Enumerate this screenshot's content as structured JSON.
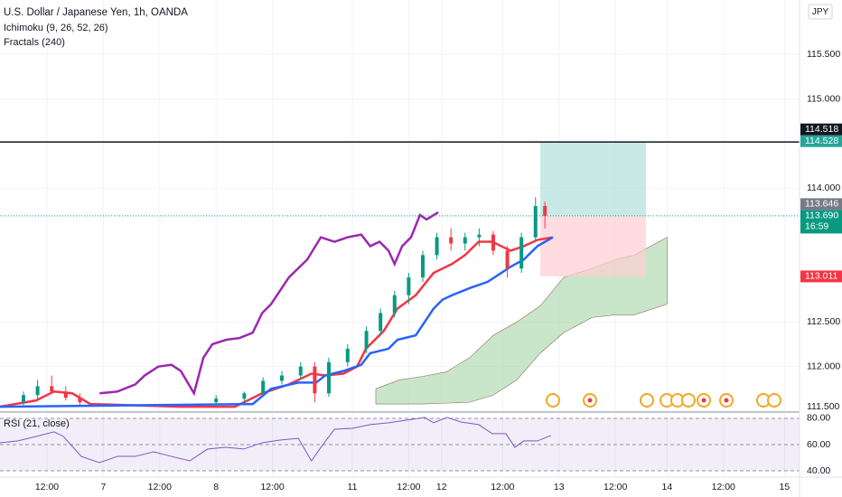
{
  "currency": "JPY",
  "chart_data": [
    {
      "type": "candlestick",
      "title": "U.S. Dollar / Japanese Yen, 1h, OANDA",
      "indicators": [
        "Ichimoku (9, 26, 52, 26)",
        "Fractals (240)"
      ],
      "xlim": [
        0,
        170.2
      ],
      "xticks": [
        {
          "value": 10,
          "label": "12:00"
        },
        {
          "value": 22,
          "label": "7"
        },
        {
          "value": 34,
          "label": "12:00"
        },
        {
          "value": 46,
          "label": "8"
        },
        {
          "value": 58,
          "label": "12:00"
        },
        {
          "value": 75,
          "label": "11"
        },
        {
          "value": 87,
          "label": "12:00"
        },
        {
          "value": 94,
          "label": "12"
        },
        {
          "value": 107,
          "label": "12:00"
        },
        {
          "value": 119,
          "label": "13"
        },
        {
          "value": 131,
          "label": "12:00"
        },
        {
          "value": 142,
          "label": "14"
        },
        {
          "value": 154,
          "label": "12:00"
        },
        {
          "value": 167,
          "label": "15"
        }
      ],
      "ylim": [
        111.5,
        116.05
      ],
      "yticks": [
        {
          "value": 111.5,
          "label": "111.500"
        },
        {
          "value": 112,
          "label": "112.000"
        },
        {
          "value": 112.5,
          "label": "112.500"
        },
        {
          "value": 114,
          "label": "114.000"
        },
        {
          "value": 115,
          "label": "115.000"
        },
        {
          "value": 115.5,
          "label": "115.500"
        }
      ],
      "grid": true,
      "candles": {
        "x": [
          5,
          8,
          11,
          14,
          17,
          46,
          52,
          56,
          60,
          64,
          67,
          70,
          74,
          78,
          81,
          84,
          87,
          90,
          93,
          96,
          99,
          102,
          105,
          108,
          111,
          114,
          116
        ],
        "open": [
          111.6,
          111.68,
          111.78,
          111.72,
          111.65,
          111.6,
          111.64,
          111.7,
          111.84,
          111.9,
          112.0,
          111.7,
          112.05,
          112.2,
          112.4,
          112.6,
          112.8,
          113.0,
          113.25,
          113.45,
          113.38,
          113.45,
          113.48,
          113.3,
          113.1,
          113.45,
          113.8
        ],
        "high": [
          111.72,
          111.85,
          111.9,
          111.78,
          111.7,
          111.68,
          111.72,
          111.88,
          111.95,
          112.05,
          112.05,
          112.1,
          112.25,
          112.45,
          112.65,
          112.85,
          113.05,
          113.3,
          113.5,
          113.55,
          113.5,
          113.55,
          113.52,
          113.35,
          113.5,
          113.9,
          113.85
        ],
        "low": [
          111.56,
          111.62,
          111.7,
          111.62,
          111.57,
          111.56,
          111.6,
          111.66,
          111.8,
          111.85,
          111.6,
          111.66,
          112.0,
          112.15,
          112.35,
          112.55,
          112.7,
          112.95,
          113.2,
          113.3,
          113.3,
          113.35,
          113.25,
          113.0,
          113.05,
          113.4,
          113.55
        ],
        "close": [
          111.68,
          111.78,
          111.72,
          111.65,
          111.6,
          111.64,
          111.7,
          111.84,
          111.9,
          112.0,
          111.7,
          112.05,
          112.2,
          112.4,
          112.6,
          112.8,
          113.0,
          113.25,
          113.45,
          113.38,
          113.45,
          113.48,
          113.3,
          113.1,
          113.45,
          113.8,
          113.69
        ],
        "up_color": "#089981",
        "down_color": "#f23645"
      },
      "cloud": {
        "color": "#a5d6a7",
        "x": [
          80,
          85,
          90,
          95,
          100,
          105,
          110,
          115,
          120,
          126,
          131,
          135,
          142
        ],
        "upper": [
          111.75,
          111.85,
          111.89,
          111.94,
          112.1,
          112.35,
          112.5,
          112.68,
          113.0,
          113.1,
          113.2,
          113.25,
          113.45
        ],
        "lower": [
          111.58,
          111.58,
          111.58,
          111.59,
          111.6,
          111.68,
          111.85,
          112.15,
          112.38,
          112.55,
          112.58,
          112.58,
          112.7
        ]
      },
      "series": [
        {
          "color": "#9c27b0",
          "x": [
            21.2,
            25.0,
            28.8,
            30.8,
            33.7,
            36.5,
            38.5,
            41.3,
            43.3,
            45.2,
            48.1,
            51.0,
            53.8,
            55.8,
            57.7,
            61.5,
            65.4,
            68.3,
            71.2,
            74.0,
            76.9,
            78.8,
            80.8,
            82.7,
            84.0,
            85.6,
            87.5,
            89.4,
            90.8,
            93.3
          ],
          "values": [
            111.7,
            111.72,
            111.8,
            111.9,
            112.0,
            112.02,
            111.95,
            111.7,
            112.1,
            112.25,
            112.3,
            112.32,
            112.38,
            112.6,
            112.7,
            113.0,
            113.2,
            113.45,
            113.4,
            113.45,
            113.48,
            113.35,
            113.4,
            113.3,
            113.15,
            113.35,
            113.45,
            113.7,
            113.65,
            113.73
          ]
        },
        {
          "color": "#f23645",
          "x": [
            0,
            7.7,
            11.5,
            15.4,
            19.2,
            38.5,
            50,
            55.8,
            61.5,
            66.3,
            69.2,
            73.1,
            76,
            77.9,
            79.8,
            81.7,
            84.6,
            88.5,
            92.3,
            96.2,
            99,
            101.9,
            104.8,
            106.7,
            108.7,
            111.5,
            114.4,
            117.7
          ],
          "values": [
            111.55,
            111.62,
            111.72,
            111.7,
            111.58,
            111.55,
            111.55,
            111.7,
            111.8,
            111.92,
            111.9,
            111.92,
            112.0,
            112.2,
            112.3,
            112.4,
            112.65,
            112.8,
            113.05,
            113.15,
            113.25,
            113.4,
            113.4,
            113.35,
            113.3,
            113.35,
            113.42,
            113.45
          ]
        },
        {
          "color": "#2962ff",
          "x": [
            0,
            53.8,
            57.7,
            63.5,
            67.3,
            69.2,
            73.1,
            76.9,
            78.8,
            82.7,
            84.6,
            88.5,
            90.4,
            92.3,
            94.2,
            96.2,
            100,
            103.8,
            106.7,
            108.7,
            111.5,
            114.4,
            117.7
          ],
          "values": [
            111.55,
            111.58,
            111.75,
            111.82,
            111.82,
            111.9,
            111.95,
            112.02,
            112.15,
            112.2,
            112.3,
            112.35,
            112.5,
            112.65,
            112.75,
            112.8,
            112.88,
            112.95,
            113.05,
            113.12,
            113.2,
            113.35,
            113.45
          ]
        }
      ],
      "position": {
        "x": [
          115,
          137.5
        ],
        "profit_color": "#b2dfdb",
        "loss_color": "#ffcdd2"
      },
      "price_labels": [
        {
          "value": 114.528,
          "color": "#26a69a"
        },
        {
          "value": 114.518,
          "color": "#131722"
        },
        {
          "value": 113.69,
          "label": "113.690",
          "color": "#089981"
        },
        {
          "value": 113.646,
          "color": "#787b86"
        },
        {
          "value": 113.011,
          "color": "#f23645"
        }
      ],
      "countdown": "16:59"
    },
    {
      "type": "line",
      "title": "RSI (21, close)",
      "ylim": [
        35.2,
        83.4
      ],
      "yticks": [
        {
          "value": 80,
          "label": "80.00"
        },
        {
          "value": 60,
          "label": "60.00"
        },
        {
          "value": 40,
          "label": "40.00"
        }
      ],
      "series": [
        {
          "color": "#7e57c2",
          "x": [
            0,
            3.8,
            7.7,
            11.5,
            13.5,
            17.3,
            21.2,
            25,
            28.8,
            32.7,
            36.5,
            40.4,
            44.2,
            48.1,
            51.9,
            55.8,
            59.6,
            63.5,
            66.3,
            68.3,
            71.2,
            75,
            78.8,
            82.7,
            86.5,
            90.4,
            92.3,
            95.2,
            98.1,
            101.9,
            104.8,
            107.7,
            109.6,
            111.5,
            114.4,
            117.3
          ],
          "values": [
            61.4,
            62.8,
            66.2,
            69.7,
            66.2,
            51.0,
            46.2,
            51.0,
            51.0,
            54.5,
            51.0,
            47.6,
            56.6,
            57.9,
            56.6,
            61.4,
            63.4,
            64.8,
            47.6,
            57.9,
            71.7,
            72.4,
            75.2,
            76.6,
            78.6,
            80.7,
            76.6,
            80.7,
            77.2,
            75.2,
            68.3,
            68.3,
            57.9,
            62.8,
            62.8,
            66.9
          ]
        }
      ]
    }
  ]
}
